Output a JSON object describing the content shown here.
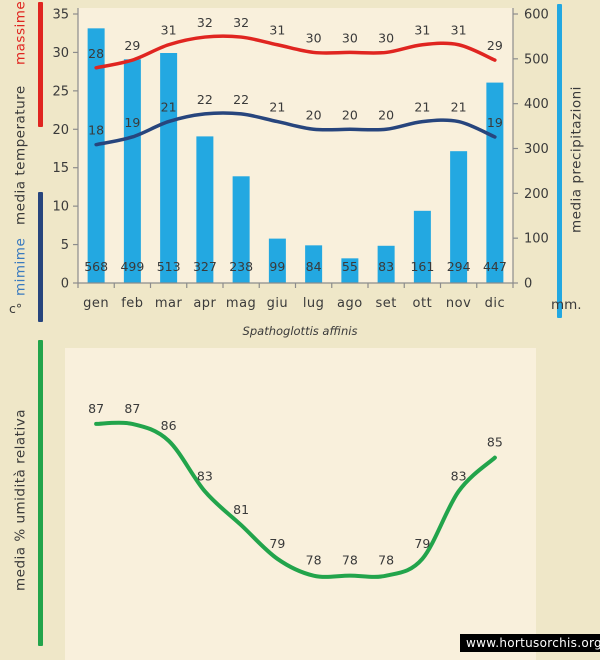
{
  "title": "Spathoglottis affinis",
  "watermark": "www.hortusorchis.org",
  "left_axis": {
    "massime_label": "massime",
    "media_temperature_label": "media temperature",
    "mimime_label": "mimime",
    "unit_label": "c°"
  },
  "right_axis": {
    "title_label": "media precipitazioni",
    "unit_label": "mm."
  },
  "humidity_axis": {
    "title_label": "media % umidità relativa"
  },
  "colors": {
    "page_bg": "#EFE7C8",
    "plot_bg": "#F9F0DC",
    "bar": "#23A8E1",
    "max_line": "#E02520",
    "min_line": "#27457D",
    "humidity_line": "#22A44B",
    "text": "#3A3A3A",
    "axis": "#8C8C8C",
    "mimime_text": "#3A7ABF",
    "watermark_bg": "#000000",
    "watermark_text": "#FFFFFF"
  },
  "chart_data": [
    {
      "id": "climate",
      "type": "bar",
      "title": "",
      "categories": [
        "gen",
        "feb",
        "mar",
        "apr",
        "mag",
        "giu",
        "lug",
        "ago",
        "set",
        "ott",
        "nov",
        "dic"
      ],
      "left_axis_ticks": [
        0,
        5,
        10,
        15,
        20,
        25,
        30,
        35
      ],
      "right_axis_ticks": [
        0,
        100,
        200,
        300,
        400,
        500,
        600
      ],
      "left_ylim": [
        0,
        35
      ],
      "right_ylim": [
        0,
        600
      ],
      "grid": false,
      "legend_position": "none",
      "series": [
        {
          "key": "precipitation",
          "name": "media precipitazioni",
          "type": "bar",
          "axis": "right",
          "color_key": "bar",
          "values": [
            568,
            499,
            513,
            327,
            238,
            99,
            84,
            55,
            83,
            161,
            294,
            447
          ]
        },
        {
          "key": "max-temp",
          "name": "massime",
          "type": "line",
          "axis": "left",
          "color_key": "max_line",
          "values": [
            28,
            29,
            31,
            32,
            32,
            31,
            30,
            30,
            30,
            31,
            31,
            29
          ]
        },
        {
          "key": "min-temp",
          "name": "mimime",
          "type": "line",
          "axis": "left",
          "color_key": "min_line",
          "values": [
            18,
            19,
            21,
            22,
            22,
            21,
            20,
            20,
            20,
            21,
            21,
            19
          ]
        }
      ]
    },
    {
      "id": "humidity",
      "type": "line",
      "title": "",
      "categories": [
        "gen",
        "feb",
        "mar",
        "apr",
        "mag",
        "giu",
        "lug",
        "ago",
        "set",
        "ott",
        "nov",
        "dic"
      ],
      "x_axis_visible": false,
      "y_axis_visible": false,
      "ylim": [
        73,
        91.5
      ],
      "grid": false,
      "legend_position": "none",
      "series": [
        {
          "key": "humidity",
          "name": "media % umidità relativa",
          "type": "line",
          "color_key": "humidity_line",
          "values": [
            87,
            87,
            86,
            83,
            81,
            79,
            78,
            78,
            78,
            79,
            83,
            85
          ]
        }
      ]
    }
  ]
}
